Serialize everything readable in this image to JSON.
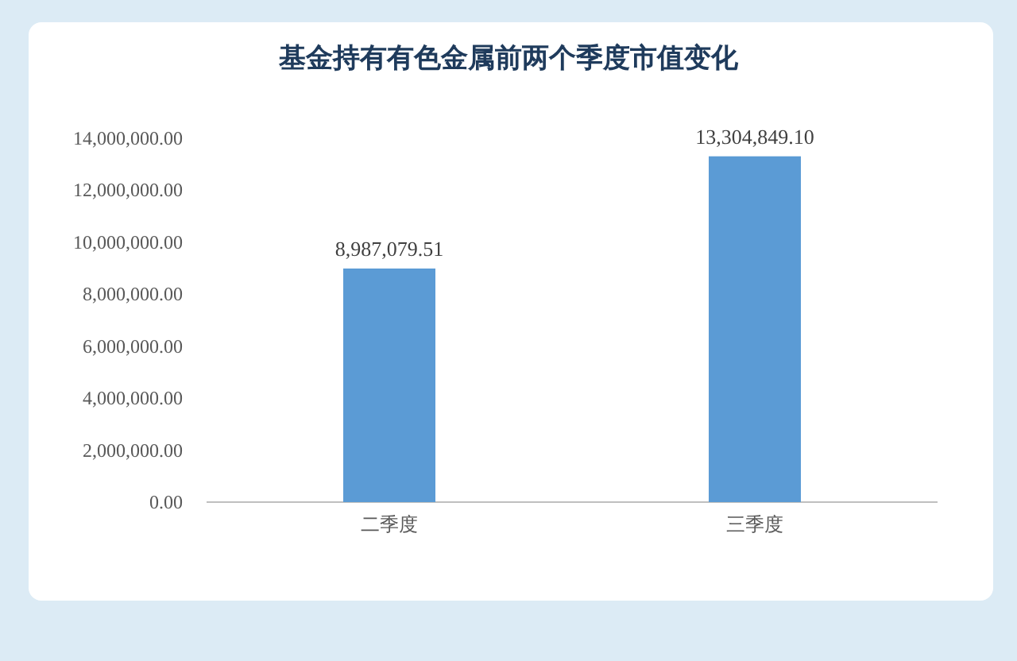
{
  "chart_data": {
    "type": "bar",
    "title": "基金持有有色金属前两个季度市值变化",
    "categories": [
      "二季度",
      "三季度"
    ],
    "values": [
      8987079.51,
      13304849.1
    ],
    "color": "#5b9bd5",
    "ylim": [
      0,
      14000000
    ],
    "yticks": [
      {
        "value": 0,
        "label": "0.00"
      },
      {
        "value": 2000000,
        "label": "2,000,000.00"
      },
      {
        "value": 4000000,
        "label": "4,000,000.00"
      },
      {
        "value": 6000000,
        "label": "6,000,000.00"
      },
      {
        "value": 8000000,
        "label": "8,000,000.00"
      },
      {
        "value": 10000000,
        "label": "10,000,000.00"
      },
      {
        "value": 12000000,
        "label": "12,000,000.00"
      },
      {
        "value": 14000000,
        "label": "14,000,000.00"
      }
    ],
    "value_labels": [
      "8,987,079.51",
      "13,304,849.10"
    ]
  }
}
